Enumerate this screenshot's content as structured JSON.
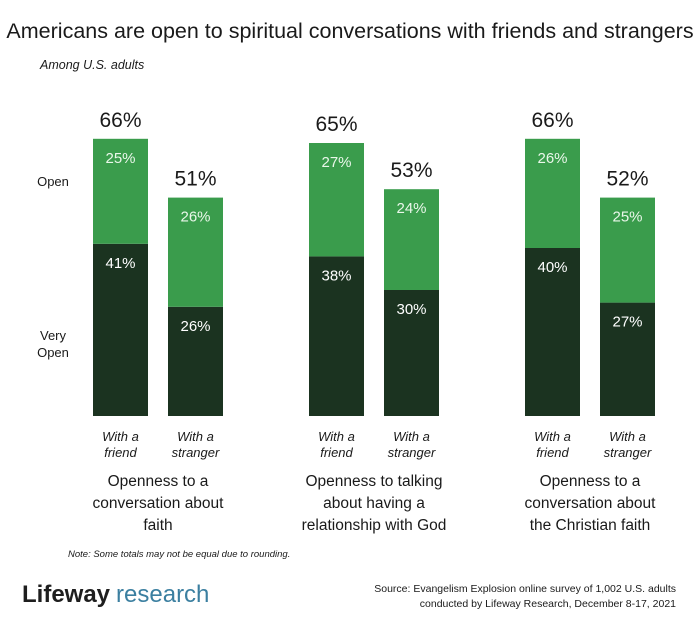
{
  "chart_data": {
    "type": "bar",
    "stacked": true,
    "title": "Americans are open to spiritual conversations with friends and strangers",
    "subtitle": "Among U.S. adults",
    "y_legend": {
      "open": "Open",
      "very_open_line1": "Very",
      "very_open_line2": "Open"
    },
    "series": [
      {
        "name": "Very Open",
        "color": "#1b3320"
      },
      {
        "name": "Open",
        "color": "#3a9c4c"
      }
    ],
    "groups": [
      {
        "label_lines": [
          "Openness to a",
          "conversation about",
          "faith"
        ],
        "bars": [
          {
            "cat_lines": [
              "With a",
              "friend"
            ],
            "very_open": 41,
            "open": 25,
            "total": 66
          },
          {
            "cat_lines": [
              "With a",
              "stranger"
            ],
            "very_open": 26,
            "open": 26,
            "total": 51
          }
        ]
      },
      {
        "label_lines": [
          "Openness to talking",
          "about having a",
          "relationship with God"
        ],
        "bars": [
          {
            "cat_lines": [
              "With a",
              "friend"
            ],
            "very_open": 38,
            "open": 27,
            "total": 65
          },
          {
            "cat_lines": [
              "With a",
              "stranger"
            ],
            "very_open": 30,
            "open": 24,
            "total": 53
          }
        ]
      },
      {
        "label_lines": [
          "Openness to a",
          "conversation about",
          "the Christian faith"
        ],
        "bars": [
          {
            "cat_lines": [
              "With a",
              "friend"
            ],
            "very_open": 40,
            "open": 26,
            "total": 66
          },
          {
            "cat_lines": [
              "With a",
              "stranger"
            ],
            "very_open": 27,
            "open": 25,
            "total": 52
          }
        ]
      }
    ],
    "note": "Note: Some totals may not be equal due to rounding.",
    "source_lines": [
      "Source: Evangelism Explosion online survey of 1,002 U.S. adults",
      "conducted by Lifeway Research, December 8-17, 2021"
    ]
  },
  "logo": {
    "brand": "Lifeway",
    "sub": "research"
  },
  "colors": {
    "dark": "#1b3320",
    "light": "#3a9c4c",
    "logo_blue": "#3b7fa0"
  }
}
